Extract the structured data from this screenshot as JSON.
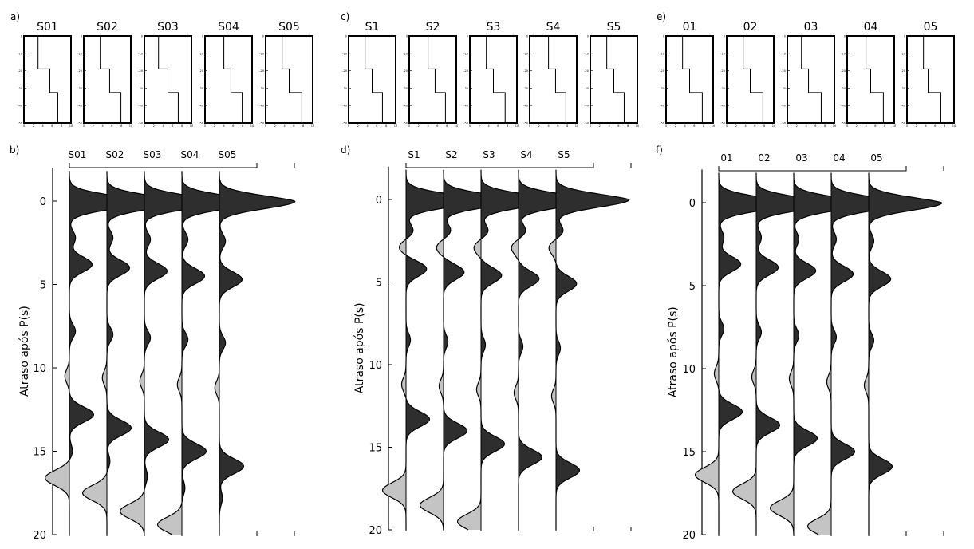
{
  "panels_top": [
    {
      "label": "a)",
      "models": [
        "S01",
        "S02",
        "S03",
        "S04",
        "S05"
      ],
      "steps": [
        [
          0.3,
          0.55,
          0.55
        ],
        [
          0.35,
          0.55,
          0.62
        ],
        [
          0.3,
          0.5,
          0.55
        ],
        [
          0.4,
          0.55,
          0.62
        ],
        [
          0.35,
          0.5,
          0.6
        ]
      ],
      "depth_ticks": [
        "0",
        "-10",
        "-20",
        "-30",
        "-40",
        "-50"
      ],
      "vel_ticks": [
        "0",
        "2",
        "4",
        "6",
        "8",
        "10"
      ]
    },
    {
      "label": "c)",
      "models": [
        "S1",
        "S2",
        "S3",
        "S4",
        "S5"
      ],
      "steps": [
        [
          0.35,
          0.5,
          0.55
        ],
        [
          0.4,
          0.55,
          0.6
        ],
        [
          0.35,
          0.5,
          0.58
        ],
        [
          0.4,
          0.55,
          0.6
        ],
        [
          0.35,
          0.5,
          0.55
        ]
      ],
      "depth_ticks": [
        "0",
        "-10",
        "-20",
        "-30",
        "-40",
        "-50"
      ],
      "vel_ticks": [
        "0",
        "2",
        "4",
        "6",
        "8",
        "10"
      ]
    },
    {
      "label": "e)",
      "models": [
        "01",
        "02",
        "03",
        "04",
        "05"
      ],
      "steps": [
        [
          0.35,
          0.5,
          0.6
        ],
        [
          0.35,
          0.5,
          0.6
        ],
        [
          0.3,
          0.45,
          0.55
        ],
        [
          0.4,
          0.5,
          0.6
        ],
        [
          0.35,
          0.45,
          0.55
        ]
      ],
      "depth_ticks": [
        "0",
        "-10",
        "-20",
        "-30",
        "-40",
        "-50"
      ],
      "vel_ticks": [
        "0",
        "2",
        "4",
        "6",
        "8",
        "10"
      ]
    }
  ],
  "chart_data": [
    {
      "type": "line",
      "panel": "b)",
      "ylabel": "Atraso após P(s)",
      "ylim": [
        20,
        -2
      ],
      "yticks": [
        0,
        5,
        10,
        15,
        20
      ],
      "series": [
        {
          "name": "S01",
          "peaks": [
            [
              0,
              1.0
            ],
            [
              3.8,
              0.3
            ],
            [
              12.8,
              0.32
            ],
            [
              16.6,
              -0.32
            ],
            [
              2.2,
              0.08
            ],
            [
              7.8,
              0.08
            ],
            [
              10.5,
              -0.06
            ],
            [
              15.0,
              0.04
            ]
          ]
        },
        {
          "name": "S02",
          "peaks": [
            [
              0,
              1.0
            ],
            [
              4.0,
              0.3
            ],
            [
              13.6,
              0.32
            ],
            [
              17.5,
              -0.32
            ],
            [
              2.2,
              0.08
            ],
            [
              8.0,
              0.08
            ],
            [
              10.6,
              -0.06
            ],
            [
              15.6,
              0.04
            ]
          ]
        },
        {
          "name": "S03",
          "peaks": [
            [
              0,
              1.0
            ],
            [
              4.2,
              0.3
            ],
            [
              14.3,
              0.32
            ],
            [
              18.6,
              -0.32
            ],
            [
              2.3,
              0.08
            ],
            [
              8.2,
              0.08
            ],
            [
              10.8,
              -0.06
            ],
            [
              16.5,
              0.04
            ]
          ]
        },
        {
          "name": "S04",
          "peaks": [
            [
              0,
              1.0
            ],
            [
              4.5,
              0.3
            ],
            [
              15.0,
              0.32
            ],
            [
              19.4,
              -0.32
            ],
            [
              2.3,
              0.08
            ],
            [
              8.3,
              0.08
            ],
            [
              11.0,
              -0.06
            ],
            [
              17.2,
              0.04
            ]
          ]
        },
        {
          "name": "S05",
          "peaks": [
            [
              0,
              1.0
            ],
            [
              4.7,
              0.3
            ],
            [
              15.9,
              0.32
            ],
            [
              2.4,
              0.08
            ],
            [
              8.5,
              0.08
            ],
            [
              11.2,
              -0.06
            ],
            [
              17.8,
              0.04
            ]
          ]
        }
      ]
    },
    {
      "type": "line",
      "panel": "d)",
      "ylabel": "Atraso após P(s)",
      "ylim": [
        20,
        -2
      ],
      "yticks": [
        0,
        5,
        10,
        15,
        20
      ],
      "series": [
        {
          "name": "S1",
          "peaks": [
            [
              0,
              1.0
            ],
            [
              1.9,
              0.1
            ],
            [
              2.9,
              -0.1
            ],
            [
              4.2,
              0.28
            ],
            [
              13.3,
              0.32
            ],
            [
              17.6,
              -0.32
            ],
            [
              8.5,
              0.06
            ],
            [
              11.2,
              -0.06
            ]
          ]
        },
        {
          "name": "S2",
          "peaks": [
            [
              0,
              1.0
            ],
            [
              1.9,
              0.1
            ],
            [
              2.9,
              -0.1
            ],
            [
              4.4,
              0.28
            ],
            [
              14.0,
              0.32
            ],
            [
              18.5,
              -0.32
            ],
            [
              8.6,
              0.06
            ],
            [
              11.3,
              -0.06
            ]
          ]
        },
        {
          "name": "S3",
          "peaks": [
            [
              0,
              1.0
            ],
            [
              1.9,
              0.1
            ],
            [
              2.9,
              -0.1
            ],
            [
              4.6,
              0.28
            ],
            [
              14.8,
              0.32
            ],
            [
              19.5,
              -0.32
            ],
            [
              8.8,
              0.06
            ],
            [
              11.5,
              -0.06
            ]
          ]
        },
        {
          "name": "S4",
          "peaks": [
            [
              0,
              1.0
            ],
            [
              1.9,
              0.1
            ],
            [
              2.9,
              -0.1
            ],
            [
              4.8,
              0.28
            ],
            [
              15.6,
              0.32
            ],
            [
              8.9,
              0.06
            ],
            [
              11.7,
              -0.06
            ]
          ]
        },
        {
          "name": "S5",
          "peaks": [
            [
              0,
              1.0
            ],
            [
              1.9,
              0.1
            ],
            [
              2.9,
              -0.1
            ],
            [
              5.1,
              0.28
            ],
            [
              16.4,
              0.32
            ],
            [
              9.0,
              0.06
            ],
            [
              11.9,
              -0.06
            ]
          ]
        }
      ]
    },
    {
      "type": "line",
      "panel": "f)",
      "ylabel": "Atraso após P(s)",
      "ylim": [
        20,
        -2
      ],
      "yticks": [
        0,
        5,
        10,
        15,
        20
      ],
      "series": [
        {
          "name": "01",
          "peaks": [
            [
              0,
              1.0
            ],
            [
              3.7,
              0.3
            ],
            [
              12.6,
              0.32
            ],
            [
              16.4,
              -0.32
            ],
            [
              2.1,
              0.07
            ],
            [
              7.6,
              0.07
            ],
            [
              10.3,
              -0.06
            ]
          ]
        },
        {
          "name": "02",
          "peaks": [
            [
              0,
              1.0
            ],
            [
              3.9,
              0.3
            ],
            [
              13.4,
              0.32
            ],
            [
              17.4,
              -0.32
            ],
            [
              2.1,
              0.07
            ],
            [
              7.8,
              0.07
            ],
            [
              10.5,
              -0.06
            ]
          ]
        },
        {
          "name": "03",
          "peaks": [
            [
              0,
              1.0
            ],
            [
              4.1,
              0.3
            ],
            [
              14.2,
              0.32
            ],
            [
              18.4,
              -0.32
            ],
            [
              2.2,
              0.07
            ],
            [
              8.0,
              0.07
            ],
            [
              10.6,
              -0.06
            ]
          ]
        },
        {
          "name": "04",
          "peaks": [
            [
              0,
              1.0
            ],
            [
              4.3,
              0.3
            ],
            [
              15.0,
              0.32
            ],
            [
              19.5,
              -0.32
            ],
            [
              2.2,
              0.07
            ],
            [
              8.1,
              0.07
            ],
            [
              10.8,
              -0.06
            ]
          ]
        },
        {
          "name": "05",
          "peaks": [
            [
              0,
              1.0
            ],
            [
              4.6,
              0.3
            ],
            [
              15.9,
              0.32
            ],
            [
              2.3,
              0.07
            ],
            [
              8.3,
              0.07
            ],
            [
              11.0,
              -0.06
            ]
          ]
        }
      ]
    }
  ],
  "colors": {
    "positive_fill": "#2e2e2e",
    "negative_fill": "#c4c4c4",
    "line": "#000000"
  }
}
